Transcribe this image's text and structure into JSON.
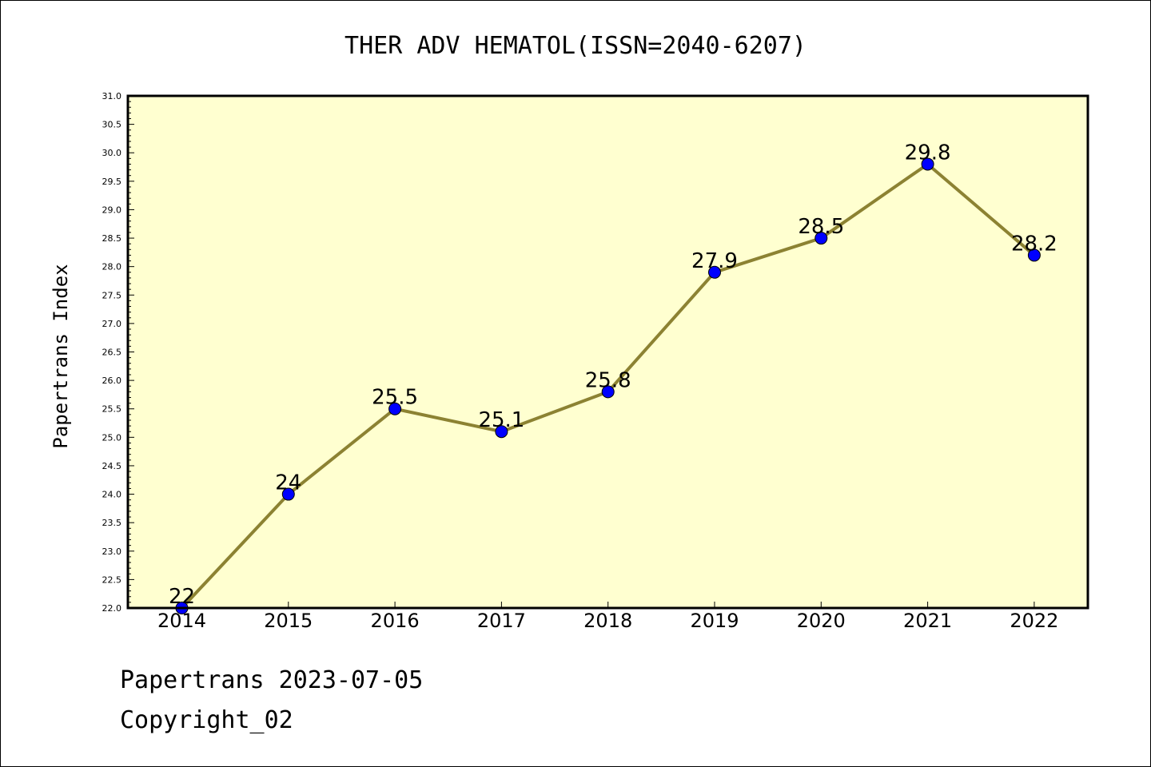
{
  "chart_data": {
    "type": "line",
    "title": "THER ADV HEMATOL(ISSN=2040-6207)",
    "xlabel": "",
    "ylabel": "Papertrans Index",
    "categories": [
      "2014",
      "2015",
      "2016",
      "2017",
      "2018",
      "2019",
      "2020",
      "2021",
      "2022"
    ],
    "series": [
      {
        "values": [
          22,
          24,
          25.5,
          25.1,
          25.8,
          27.9,
          28.5,
          29.8,
          28.2
        ],
        "labels": [
          "22",
          "24",
          "25.5",
          "25.1",
          "25.8",
          "27.9",
          "28.5",
          "29.8",
          "28.2"
        ]
      }
    ],
    "ylim": [
      22.0,
      31.0
    ],
    "ytick_step": 0.5,
    "grid": false,
    "legend": "none",
    "colors": {
      "plot_background": "#ffffd0",
      "line": "#8c8232",
      "marker": "#0000ff"
    }
  },
  "footer": {
    "line1": "Papertrans 2023-07-05",
    "line2": "Copyright_02"
  }
}
